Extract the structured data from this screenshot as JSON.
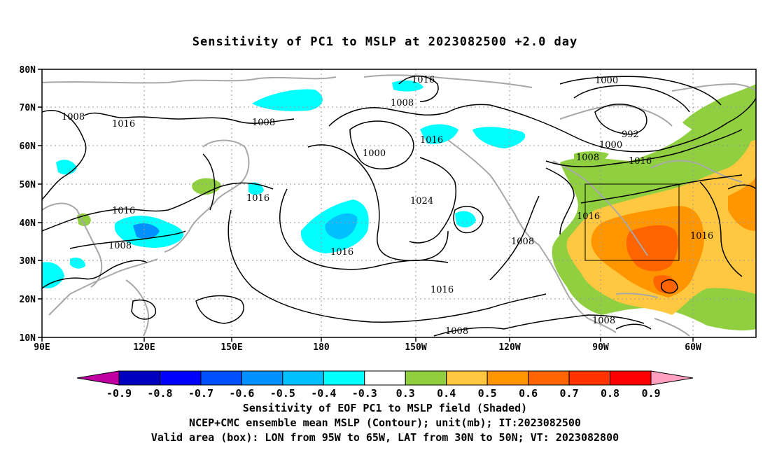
{
  "title": "Sensitivity of PC1 to MSLP at 2023082500 +2.0 day",
  "map": {
    "lon_labels": [
      "90E",
      "120E",
      "150E",
      "180",
      "150W",
      "120W",
      "90W",
      "60W"
    ],
    "lat_labels": [
      "80N",
      "70N",
      "60N",
      "50N",
      "40N",
      "30N",
      "20N",
      "10N"
    ],
    "extent": {
      "lon_west": "90E",
      "lon_east": "45W",
      "lat_south": "10N",
      "lat_north": "80N"
    },
    "gridlines": "dotted every 30 degrees longitude, 10 degrees latitude",
    "contour_color": "#000000",
    "coastline_color": "#a8a8a8",
    "contour_labels": [
      "1016",
      "1016",
      "1008",
      "1008",
      "1000",
      "1000",
      "992",
      "1008",
      "1016",
      "1008",
      "1016",
      "1008",
      "1016",
      "1000",
      "1016",
      "1024",
      "1016",
      "1016",
      "1008",
      "1016",
      "1016",
      "1008",
      "1008"
    ],
    "valid_box": {
      "lon_from": "95W",
      "lon_to": "65W",
      "lat_from": "30N",
      "lat_to": "50N"
    }
  },
  "colorbar": {
    "labels": [
      "-0.9",
      "-0.8",
      "-0.7",
      "-0.6",
      "-0.5",
      "-0.4",
      "-0.3",
      "0.3",
      "0.4",
      "0.5",
      "0.6",
      "0.7",
      "0.8",
      "0.9"
    ],
    "colors": [
      "#c000a0",
      "#0000c0",
      "#0000ff",
      "#0050ff",
      "#0090ff",
      "#00c0ff",
      "#00ffff",
      "#ffffff",
      "#90d040",
      "#ffc840",
      "#ff9600",
      "#ff6400",
      "#ff3200",
      "#ff0000",
      "#ffa0c0"
    ]
  },
  "captions": {
    "line1": "Sensitivity of EOF PC1 to MSLP field (Shaded)",
    "line2": "NCEP+CMC ensemble mean MSLP (Contour); unit(mb); IT:2023082500",
    "line3": "Valid area (box): LON from 95W to 65W, LAT from 30N to 50N; VT: 2023082800"
  }
}
